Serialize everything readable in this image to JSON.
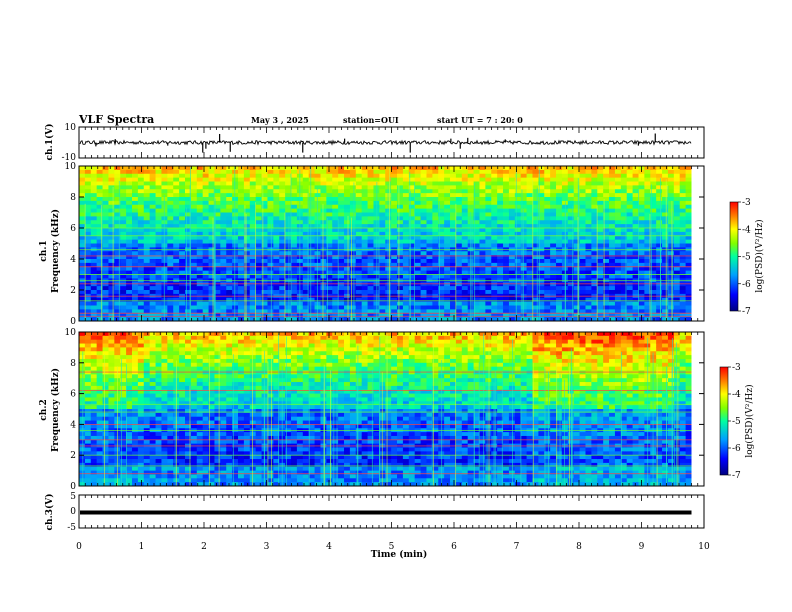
{
  "header": {
    "title": "VLF Spectra",
    "date": "May 3 , 2025",
    "station": "station=OUI",
    "start_ut": "start  UT =   7 : 20: 0"
  },
  "chart_data": [
    {
      "type": "line",
      "name": "ch1-waveform",
      "ylabel": "ch.1(V)",
      "ylim": [
        -10,
        10
      ],
      "yticks": [
        "10",
        "-10"
      ],
      "x_range": [
        0,
        9.8
      ],
      "baseline": 0,
      "spikes": [
        {
          "x": 0.27,
          "y": -2.5
        },
        {
          "x": 0.58,
          "y": 2.2
        },
        {
          "x": 1.42,
          "y": -2.0
        },
        {
          "x": 1.98,
          "y": -6.5
        },
        {
          "x": 2.03,
          "y": -4.0
        },
        {
          "x": 2.25,
          "y": 5.5
        },
        {
          "x": 2.42,
          "y": -6.0
        },
        {
          "x": 3.58,
          "y": -6.5
        },
        {
          "x": 4.25,
          "y": 2.5
        },
        {
          "x": 5.3,
          "y": -6.5
        },
        {
          "x": 5.95,
          "y": 2.5
        },
        {
          "x": 6.1,
          "y": -4.0
        },
        {
          "x": 6.22,
          "y": 3.0
        },
        {
          "x": 6.82,
          "y": 2.0
        },
        {
          "x": 8.95,
          "y": -2.0
        },
        {
          "x": 9.22,
          "y": 5.8
        }
      ]
    },
    {
      "type": "heatmap",
      "name": "ch1-spectrogram",
      "ylabel": "ch.1\nFrequency (kHz)",
      "ylim": [
        0,
        10
      ],
      "yticks": [
        "0",
        "2",
        "4",
        "6",
        "8",
        "10"
      ],
      "x_range": [
        0,
        9.8
      ],
      "colorbar": {
        "label": "log(PSD)(V²/Hz)",
        "ticks": [
          "-3",
          "-4",
          "-5",
          "-6",
          "-7"
        ],
        "range": [
          -7,
          -3
        ]
      },
      "bands_kHz": [
        0.3,
        0.5,
        1.3,
        1.6,
        2.4,
        2.6,
        3.0,
        3.5,
        4.2,
        4.6,
        5.5,
        6.0
      ]
    },
    {
      "type": "heatmap",
      "name": "ch2-spectrogram",
      "ylabel": "ch.2\nFrequency (kHz)",
      "ylim": [
        0,
        10
      ],
      "yticks": [
        "0",
        "2",
        "4",
        "6",
        "8",
        "10"
      ],
      "x_range": [
        0,
        9.8
      ],
      "colorbar": {
        "label": "log(PSD)(V²/Hz)",
        "ticks": [
          "-3",
          "-4",
          "-5",
          "-6",
          "-7"
        ],
        "range": [
          -7,
          -3
        ]
      },
      "bands_kHz": [
        0.8,
        1.3,
        2.0,
        2.6,
        3.0,
        3.6,
        4.0,
        4.8,
        5.3,
        6.2,
        7.4
      ]
    },
    {
      "type": "line",
      "name": "ch3-waveform",
      "ylabel": "ch.3(V)",
      "ylim": [
        -5,
        5
      ],
      "yticks": [
        "5",
        "0",
        "-5"
      ],
      "x_range": [
        0,
        9.8
      ],
      "values": [
        -0.3,
        -0.3
      ]
    }
  ],
  "x_axis": {
    "label": "Time (min)",
    "ticks": [
      "0",
      "1",
      "2",
      "3",
      "4",
      "5",
      "6",
      "7",
      "8",
      "9",
      "10"
    ],
    "range": [
      0,
      10
    ]
  }
}
